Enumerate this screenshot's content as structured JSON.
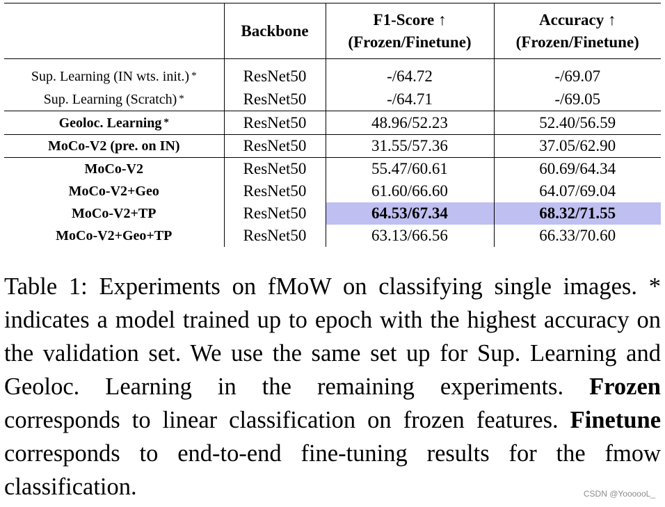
{
  "table": {
    "headers": {
      "backbone": "Backbone",
      "f1_line1": "F1-Score ↑",
      "f1_line2": "(Frozen/Finetune)",
      "acc_line1": "Accuracy ↑",
      "acc_line2": "(Frozen/Finetune)"
    },
    "rows": [
      {
        "name": "Sup. Learning (IN wts. init.)",
        "star": "*",
        "backbone": "ResNet50",
        "f1": "-/64.72",
        "acc": "-/69.07"
      },
      {
        "name": "Sup. Learning (Scratch)",
        "star": "*",
        "backbone": "ResNet50",
        "f1": "-/64.71",
        "acc": "-/69.05"
      },
      {
        "name": "Geoloc. Learning",
        "star": "*",
        "backbone": "ResNet50",
        "f1": "48.96/52.23",
        "acc": "52.40/56.59"
      },
      {
        "name": "MoCo-V2 (pre. on IN)",
        "star": "",
        "backbone": "ResNet50",
        "f1": "31.55/57.36",
        "acc": "37.05/62.90"
      },
      {
        "name": "MoCo-V2",
        "star": "",
        "backbone": "ResNet50",
        "f1": "55.47/60.61",
        "acc": "60.69/64.34"
      },
      {
        "name": "MoCo-V2+Geo",
        "star": "",
        "backbone": "ResNet50",
        "f1": "61.60/66.60",
        "acc": "64.07/69.04"
      },
      {
        "name": "MoCo-V2+TP",
        "star": "",
        "backbone": "ResNet50",
        "f1": "64.53/67.34",
        "acc": "68.32/71.55"
      },
      {
        "name": "MoCo-V2+Geo+TP",
        "star": "",
        "backbone": "ResNet50",
        "f1": "63.13/66.56",
        "acc": "66.33/70.60"
      }
    ],
    "highlight_color": "#bfbff2"
  },
  "caption": {
    "part1": "Table 1: Experiments on fMoW on classifying single images. * indicates a model trained up to epoch with the highest accuracy on the validation set. We use the same set up for Sup. Learning and Geoloc. Learning in the remaining experiments.",
    "frozen_term": "Frozen",
    "part2": "corresponds to linear classification on frozen features.",
    "finetune_term": "Finetune",
    "part3": "corresponds to end-to-end fine-tuning results for the fmow classification."
  },
  "watermark": "CSDN @YoooooL_"
}
